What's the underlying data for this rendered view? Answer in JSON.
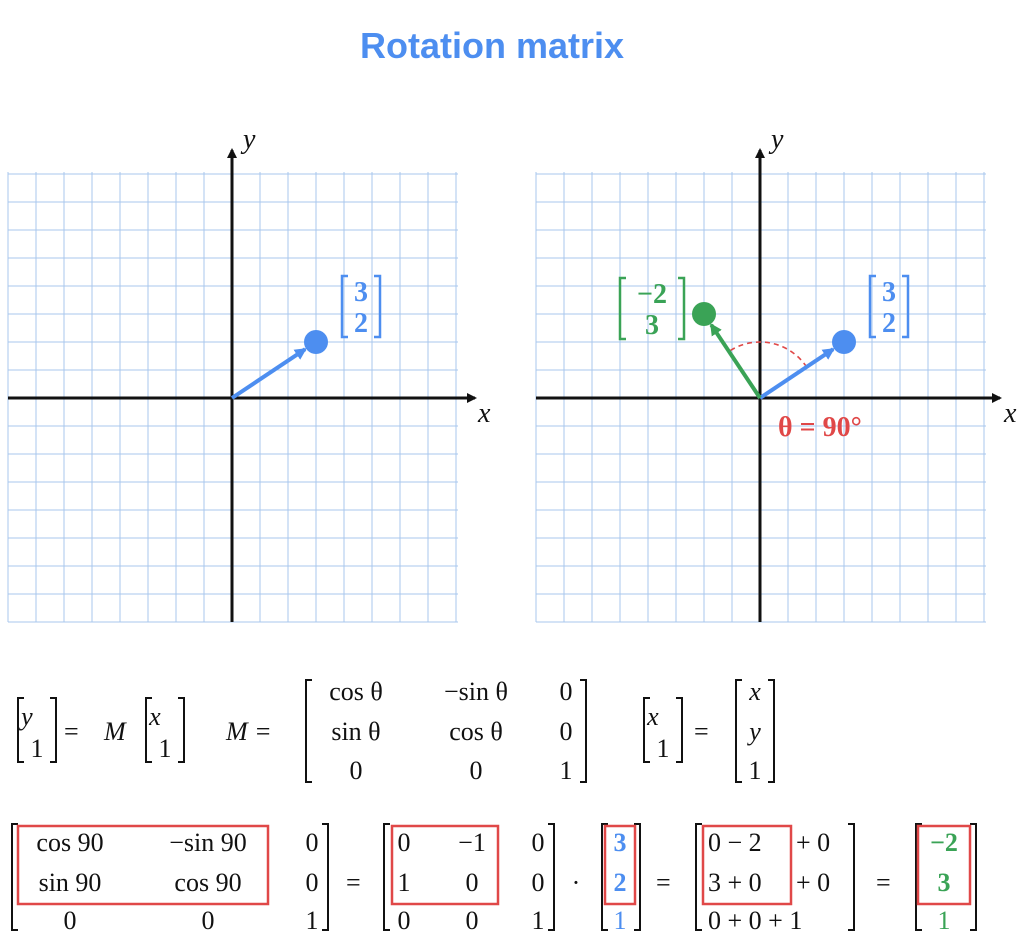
{
  "title": "Rotation matrix",
  "colors": {
    "title": "#4d8ef0",
    "grid": "#a9c7ee",
    "axis": "#111111",
    "blue": "#4d8ef0",
    "green": "#3aa356",
    "red": "#e04848"
  },
  "left_plot": {
    "x_axis_label": "x",
    "y_axis_label": "y",
    "vector": {
      "x": 3,
      "y": 2
    },
    "vector_label": [
      "3",
      "2"
    ]
  },
  "right_plot": {
    "x_axis_label": "x",
    "y_axis_label": "y",
    "original_vector": {
      "x": 3,
      "y": 2
    },
    "original_label": [
      "3",
      "2"
    ],
    "rotated_vector": {
      "x": -2,
      "y": 3
    },
    "rotated_label": [
      "−2",
      "3"
    ],
    "angle_label": "θ = 90°"
  },
  "equations": {
    "eq1": {
      "lhs": [
        "y⃗",
        "1"
      ],
      "equals": "=",
      "m": "M",
      "rhs": [
        "x⃗",
        "1"
      ]
    },
    "eq2": {
      "lhs": "M =",
      "matrix": [
        [
          "cos θ",
          "−sin θ",
          "0"
        ],
        [
          "sin θ",
          "cos θ",
          "0"
        ],
        [
          "0",
          "0",
          "1"
        ]
      ]
    },
    "eq3": {
      "lhs": [
        "x⃗",
        "1"
      ],
      "equals": "=",
      "rhs": [
        "x",
        "y",
        "1"
      ]
    },
    "computation": {
      "m90": [
        [
          "cos 90",
          "−sin 90",
          "0"
        ],
        [
          "sin 90",
          "cos 90",
          "0"
        ],
        [
          "0",
          "0",
          "1"
        ]
      ],
      "eq_a": "=",
      "mnum": [
        [
          "0",
          "−1",
          "0"
        ],
        [
          "1",
          "0",
          "0"
        ],
        [
          "0",
          "0",
          "1"
        ]
      ],
      "dot": "·",
      "vec": [
        "3",
        "2",
        "1"
      ],
      "eq_b": "=",
      "sum_rows": [
        [
          "0 − 2",
          "+ 0"
        ],
        [
          "3 + 0",
          "+ 0"
        ],
        [
          "0 + 0 + 1",
          ""
        ]
      ],
      "eq_c": "=",
      "result": [
        "−2",
        "3",
        "1"
      ]
    }
  }
}
